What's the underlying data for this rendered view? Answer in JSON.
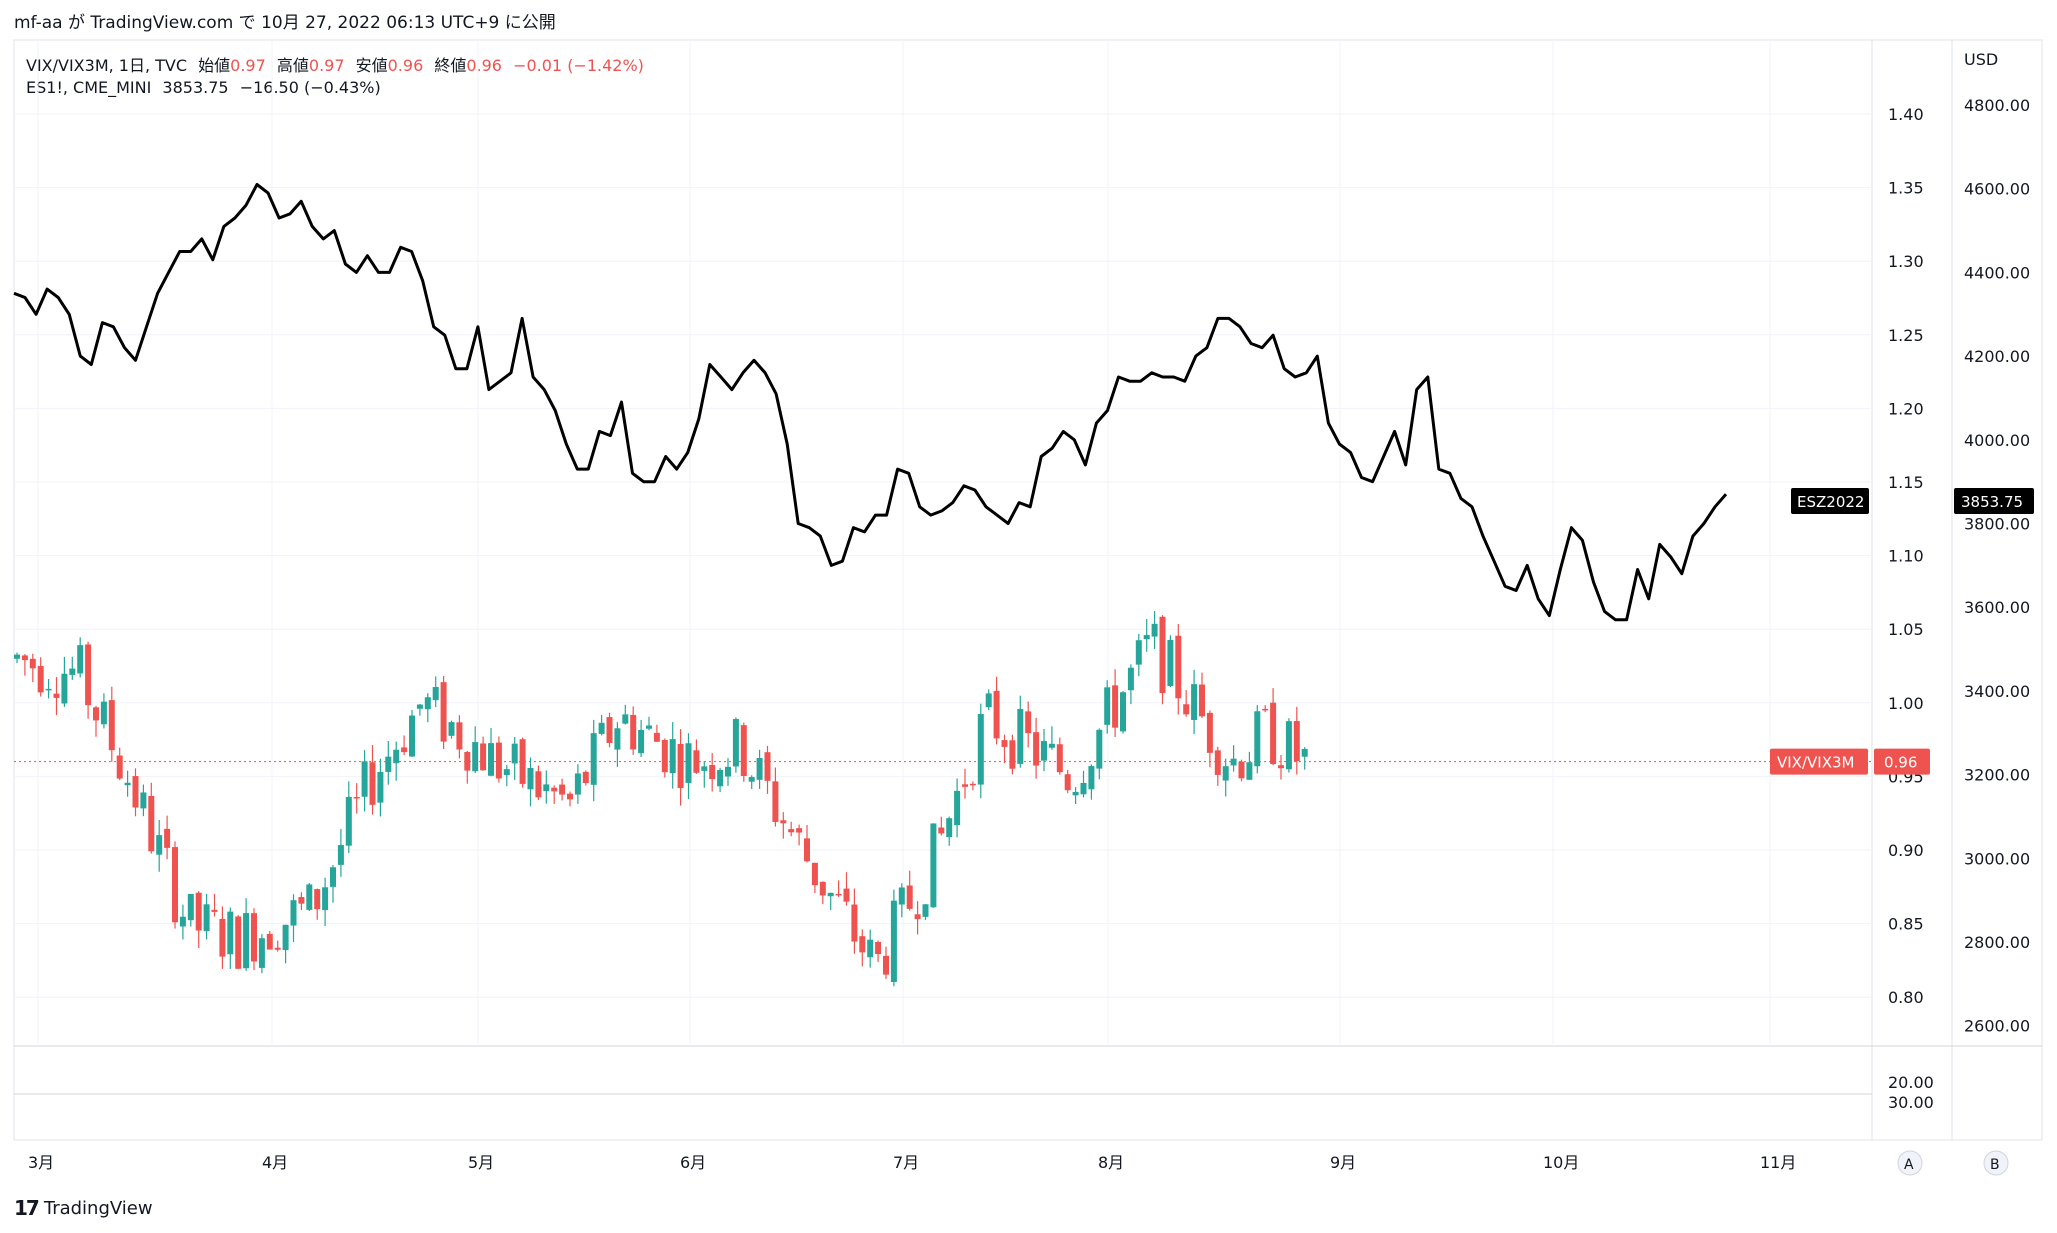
{
  "header": {
    "user": "mf-aa",
    "text": "が TradingView.com で 10月 27, 2022 06:13 UTC+9 に公開"
  },
  "legend": {
    "main": {
      "symbol": "VIX/VIX3M, 1日, TVC",
      "open_label": "始値",
      "open": "0.97",
      "high_label": "高値",
      "high": "0.97",
      "low_label": "安値",
      "low": "0.96",
      "close_label": "終値",
      "close": "0.96",
      "change": "−0.01 (−1.42%)"
    },
    "compare": {
      "symbol": "ES1!, CME_MINI",
      "value": "3853.75",
      "change": "−16.50 (−0.43%)"
    }
  },
  "footer": {
    "brand": "TradingView"
  },
  "colors": {
    "up": "#26a69a",
    "down": "#ef5350",
    "line": "#000000",
    "grid": "#f0f3fa"
  },
  "chart_data": {
    "type": "candlestick+line",
    "currency": "USD",
    "x_labels": [
      "3月",
      "4月",
      "5月",
      "6月",
      "7月",
      "8月",
      "9月",
      "10月",
      "11月"
    ],
    "left_axis": {
      "series": "VIX/VIX3M",
      "ticks": [
        "1.40",
        "1.35",
        "1.30",
        "1.25",
        "1.20",
        "1.15",
        "1.10",
        "1.05",
        "1.00",
        "0.95",
        "0.90",
        "0.85",
        "0.80"
      ],
      "range": [
        0.77,
        1.43
      ]
    },
    "right_axis": {
      "series": "ES1!",
      "ticks": [
        "4800.00",
        "4600.00",
        "4400.00",
        "4200.00",
        "4000.00",
        "3800.00",
        "3600.00",
        "3400.00",
        "3200.00",
        "3000.00",
        "2800.00",
        "2600.00"
      ],
      "range": [
        2550,
        4850
      ]
    },
    "sub_pane_ticks": [
      "20.00",
      "30.00"
    ],
    "pane_labels": [
      "A",
      "B"
    ],
    "last_price_labels": {
      "line": {
        "name": "ESZ2022",
        "value": "3853.75"
      },
      "candle": {
        "name": "VIX/VIX3M",
        "value": "0.96"
      }
    },
    "es_line": [
      4350,
      4340,
      4300,
      4360,
      4340,
      4300,
      4200,
      4180,
      4280,
      4270,
      4220,
      4190,
      4270,
      4350,
      4400,
      4450,
      4450,
      4480,
      4430,
      4510,
      4530,
      4560,
      4610,
      4590,
      4530,
      4540,
      4570,
      4510,
      4480,
      4500,
      4420,
      4400,
      4440,
      4400,
      4400,
      4460,
      4450,
      4380,
      4270,
      4250,
      4170,
      4170,
      4270,
      4120,
      4140,
      4160,
      4290,
      4150,
      4120,
      4070,
      3990,
      3930,
      3930,
      4020,
      4010,
      4090,
      3920,
      3900,
      3900,
      3960,
      3930,
      3970,
      4050,
      4180,
      4150,
      4120,
      4160,
      4190,
      4160,
      4110,
      3990,
      3800,
      3790,
      3770,
      3700,
      3710,
      3790,
      3780,
      3820,
      3820,
      3930,
      3920,
      3840,
      3820,
      3830,
      3850,
      3890,
      3880,
      3840,
      3820,
      3800,
      3850,
      3840,
      3960,
      3980,
      4020,
      4000,
      3940,
      4040,
      4070,
      4150,
      4140,
      4140,
      4160,
      4150,
      4150,
      4140,
      4200,
      4220,
      4290,
      4290,
      4270,
      4230,
      4220,
      4250,
      4170,
      4150,
      4160,
      4200,
      4040,
      3990,
      3970,
      3910,
      3900,
      3960,
      4020,
      3940,
      4120,
      4150,
      3930,
      3920,
      3860,
      3840,
      3770,
      3710,
      3650,
      3640,
      3700,
      3620,
      3580,
      3690,
      3790,
      3760,
      3660,
      3590,
      3570,
      3570,
      3690,
      3620,
      3750,
      3720,
      3680,
      3770,
      3800,
      3840,
      3870
    ]
  }
}
